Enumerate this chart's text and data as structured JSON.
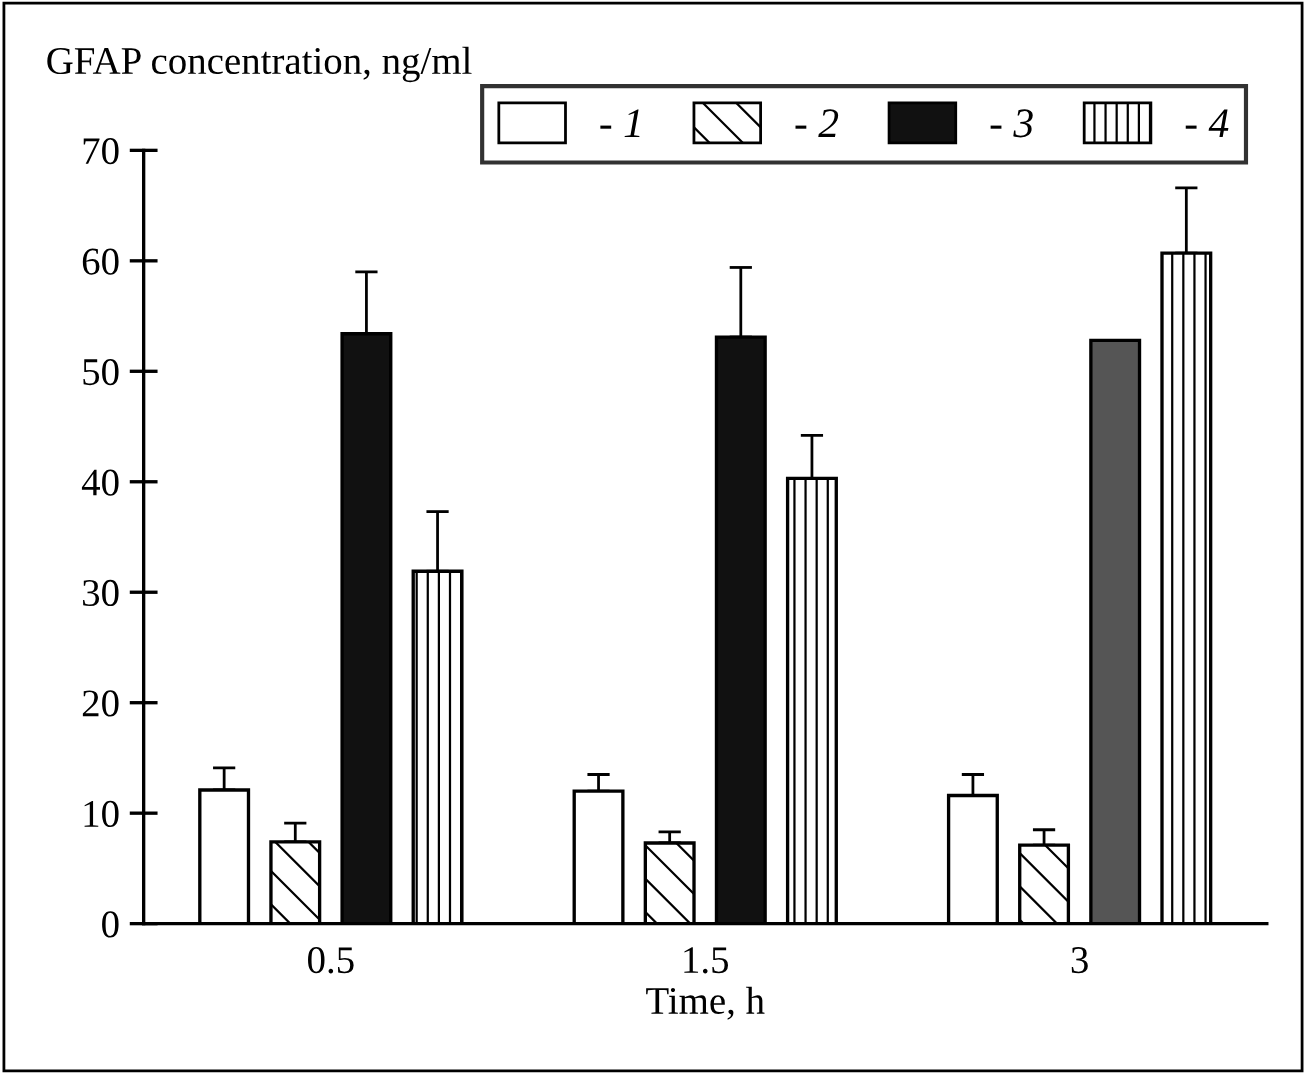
{
  "chart_data": {
    "type": "bar",
    "ylabel": "GFAP concentration, ng/ml",
    "xlabel": "Time, h",
    "categories": [
      "0.5",
      "1.5",
      "3"
    ],
    "series": [
      {
        "name": "- 1",
        "color": "#ffffff",
        "values": [
          12.1,
          12.0,
          11.6
        ],
        "errors": [
          [
            12.1,
            14.1
          ],
          [
            12.0,
            13.5
          ],
          [
            11.6,
            13.5
          ]
        ]
      },
      {
        "name": "- 2",
        "color": "#ffffff",
        "values": [
          7.4,
          7.3,
          7.1
        ],
        "errors": [
          [
            7.4,
            9.1
          ],
          [
            7.3,
            8.3
          ],
          [
            7.1,
            8.5
          ]
        ]
      },
      {
        "name": "- 3",
        "color": "#111111",
        "colors": [
          "#111111",
          "#111111",
          "#555555"
        ],
        "values": [
          53.4,
          53.1,
          52.8
        ],
        "errors": [
          [
            53.4,
            59.0
          ],
          [
            53.1,
            59.4
          ],
          null
        ]
      },
      {
        "name": "- 4",
        "color": "#ffffff",
        "values": [
          31.9,
          40.3,
          60.7
        ],
        "errors": [
          [
            31.9,
            37.3
          ],
          [
            40.3,
            44.2
          ],
          [
            60.7,
            66.6
          ]
        ]
      }
    ],
    "ylim": [
      0,
      70
    ],
    "yticks": [
      0,
      10,
      20,
      30,
      40,
      50,
      60,
      70
    ],
    "grid": false,
    "legend": "top right"
  }
}
